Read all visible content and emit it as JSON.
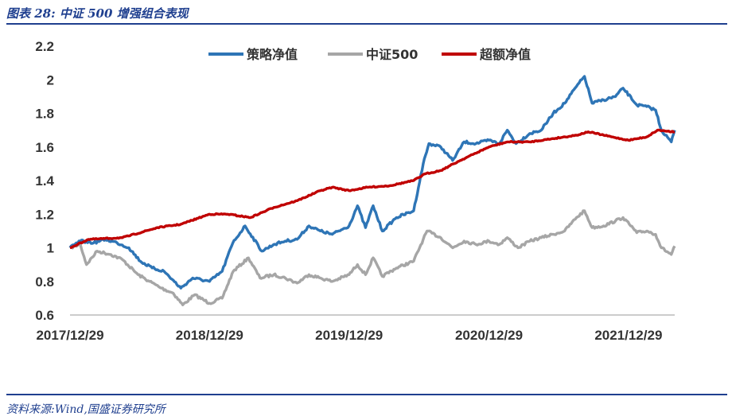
{
  "caption": "图表 28:  中证 500 增强组合表现",
  "source": "资料来源:Wind,国盛证券研究所",
  "chart_data": {
    "type": "line",
    "title": "",
    "xlabel": "",
    "ylabel": "",
    "ylim": [
      0.6,
      2.2
    ],
    "yticks": [
      "0.6",
      "0.8",
      "1",
      "1.2",
      "1.4",
      "1.6",
      "1.8",
      "2",
      "2.2"
    ],
    "xticks": [
      "2017/12/29",
      "2018/12/29",
      "2019/12/29",
      "2020/12/29",
      "2021/12/29"
    ],
    "x_range": [
      "2017-12-29",
      "2022-04-29"
    ],
    "grid": false,
    "legend_position": "top",
    "series": [
      {
        "name": "策略净值",
        "color": "#2e75b6",
        "points": [
          [
            "2017-12-29",
            1.0
          ],
          [
            "2018-01-25",
            1.04
          ],
          [
            "2018-03-01",
            1.03
          ],
          [
            "2018-04-01",
            1.05
          ],
          [
            "2018-05-01",
            1.03
          ],
          [
            "2018-06-01",
            1.0
          ],
          [
            "2018-07-01",
            0.92
          ],
          [
            "2018-08-01",
            0.88
          ],
          [
            "2018-09-01",
            0.86
          ],
          [
            "2018-10-15",
            0.76
          ],
          [
            "2018-11-15",
            0.82
          ],
          [
            "2018-12-29",
            0.8
          ],
          [
            "2019-01-31",
            0.86
          ],
          [
            "2019-02-28",
            1.03
          ],
          [
            "2019-04-01",
            1.13
          ],
          [
            "2019-05-15",
            0.98
          ],
          [
            "2019-06-15",
            1.02
          ],
          [
            "2019-07-15",
            1.04
          ],
          [
            "2019-08-15",
            1.05
          ],
          [
            "2019-09-15",
            1.13
          ],
          [
            "2019-10-15",
            1.1
          ],
          [
            "2019-11-15",
            1.08
          ],
          [
            "2019-12-29",
            1.13
          ],
          [
            "2020-01-20",
            1.25
          ],
          [
            "2020-02-10",
            1.12
          ],
          [
            "2020-03-01",
            1.25
          ],
          [
            "2020-03-25",
            1.1
          ],
          [
            "2020-05-01",
            1.18
          ],
          [
            "2020-06-15",
            1.22
          ],
          [
            "2020-07-10",
            1.5
          ],
          [
            "2020-07-25",
            1.62
          ],
          [
            "2020-08-25",
            1.6
          ],
          [
            "2020-09-25",
            1.52
          ],
          [
            "2020-10-25",
            1.63
          ],
          [
            "2020-11-25",
            1.62
          ],
          [
            "2020-12-29",
            1.64
          ],
          [
            "2021-01-25",
            1.62
          ],
          [
            "2021-02-15",
            1.7
          ],
          [
            "2021-03-10",
            1.62
          ],
          [
            "2021-04-15",
            1.68
          ],
          [
            "2021-05-15",
            1.7
          ],
          [
            "2021-06-15",
            1.8
          ],
          [
            "2021-07-15",
            1.86
          ],
          [
            "2021-08-15",
            1.96
          ],
          [
            "2021-09-05",
            2.02
          ],
          [
            "2021-09-25",
            1.86
          ],
          [
            "2021-10-25",
            1.88
          ],
          [
            "2021-11-25",
            1.9
          ],
          [
            "2021-12-15",
            1.95
          ],
          [
            "2022-01-20",
            1.85
          ],
          [
            "2022-02-15",
            1.84
          ],
          [
            "2022-03-10",
            1.82
          ],
          [
            "2022-03-25",
            1.7
          ],
          [
            "2022-04-20",
            1.63
          ],
          [
            "2022-04-29",
            1.7
          ]
        ]
      },
      {
        "name": "中证500",
        "color": "#a6a6a6",
        "points": [
          [
            "2017-12-29",
            1.0
          ],
          [
            "2018-01-25",
            1.02
          ],
          [
            "2018-02-10",
            0.9
          ],
          [
            "2018-03-10",
            0.98
          ],
          [
            "2018-04-15",
            0.96
          ],
          [
            "2018-05-15",
            0.93
          ],
          [
            "2018-06-25",
            0.84
          ],
          [
            "2018-07-25",
            0.8
          ],
          [
            "2018-08-25",
            0.76
          ],
          [
            "2018-09-25",
            0.73
          ],
          [
            "2018-10-20",
            0.66
          ],
          [
            "2018-11-20",
            0.72
          ],
          [
            "2018-12-29",
            0.67
          ],
          [
            "2019-01-31",
            0.7
          ],
          [
            "2019-03-01",
            0.86
          ],
          [
            "2019-04-10",
            0.94
          ],
          [
            "2019-05-10",
            0.82
          ],
          [
            "2019-06-15",
            0.84
          ],
          [
            "2019-07-15",
            0.82
          ],
          [
            "2019-08-15",
            0.79
          ],
          [
            "2019-09-15",
            0.84
          ],
          [
            "2019-10-15",
            0.82
          ],
          [
            "2019-11-15",
            0.8
          ],
          [
            "2019-12-29",
            0.84
          ],
          [
            "2020-01-20",
            0.9
          ],
          [
            "2020-02-10",
            0.84
          ],
          [
            "2020-03-01",
            0.94
          ],
          [
            "2020-03-25",
            0.83
          ],
          [
            "2020-05-01",
            0.88
          ],
          [
            "2020-06-15",
            0.92
          ],
          [
            "2020-07-10",
            1.05
          ],
          [
            "2020-07-20",
            1.1
          ],
          [
            "2020-08-25",
            1.06
          ],
          [
            "2020-09-25",
            1.0
          ],
          [
            "2020-10-25",
            1.04
          ],
          [
            "2020-11-25",
            1.02
          ],
          [
            "2020-12-29",
            1.04
          ],
          [
            "2021-01-25",
            1.02
          ],
          [
            "2021-02-15",
            1.06
          ],
          [
            "2021-03-15",
            1.0
          ],
          [
            "2021-04-15",
            1.04
          ],
          [
            "2021-05-15",
            1.06
          ],
          [
            "2021-06-15",
            1.08
          ],
          [
            "2021-07-15",
            1.1
          ],
          [
            "2021-08-15",
            1.18
          ],
          [
            "2021-09-05",
            1.22
          ],
          [
            "2021-09-25",
            1.12
          ],
          [
            "2021-10-25",
            1.13
          ],
          [
            "2021-11-25",
            1.16
          ],
          [
            "2021-12-15",
            1.18
          ],
          [
            "2022-01-20",
            1.09
          ],
          [
            "2022-02-15",
            1.1
          ],
          [
            "2022-03-10",
            1.08
          ],
          [
            "2022-03-25",
            1.0
          ],
          [
            "2022-04-20",
            0.96
          ],
          [
            "2022-04-29",
            1.01
          ]
        ]
      },
      {
        "name": "超额净值",
        "color": "#c00000",
        "points": [
          [
            "2017-12-29",
            1.0
          ],
          [
            "2018-02-15",
            1.05
          ],
          [
            "2018-05-15",
            1.06
          ],
          [
            "2018-08-15",
            1.12
          ],
          [
            "2018-10-15",
            1.14
          ],
          [
            "2018-12-29",
            1.2
          ],
          [
            "2019-02-15",
            1.2
          ],
          [
            "2019-04-15",
            1.18
          ],
          [
            "2019-06-15",
            1.24
          ],
          [
            "2019-08-15",
            1.28
          ],
          [
            "2019-10-15",
            1.34
          ],
          [
            "2019-11-15",
            1.36
          ],
          [
            "2019-12-29",
            1.34
          ],
          [
            "2020-02-15",
            1.36
          ],
          [
            "2020-04-15",
            1.37
          ],
          [
            "2020-06-15",
            1.4
          ],
          [
            "2020-07-15",
            1.44
          ],
          [
            "2020-08-25",
            1.46
          ],
          [
            "2020-10-15",
            1.52
          ],
          [
            "2020-12-29",
            1.6
          ],
          [
            "2021-02-15",
            1.63
          ],
          [
            "2021-04-15",
            1.63
          ],
          [
            "2021-06-15",
            1.65
          ],
          [
            "2021-08-15",
            1.67
          ],
          [
            "2021-09-15",
            1.69
          ],
          [
            "2021-11-15",
            1.66
          ],
          [
            "2021-12-29",
            1.64
          ],
          [
            "2022-02-15",
            1.66
          ],
          [
            "2022-03-15",
            1.7
          ],
          [
            "2022-04-29",
            1.69
          ]
        ]
      }
    ]
  }
}
